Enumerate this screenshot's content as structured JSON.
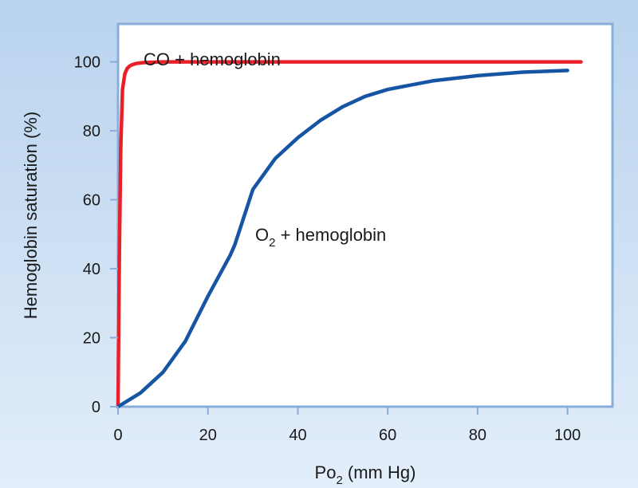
{
  "chart_data": {
    "type": "line",
    "title": "",
    "xlabel": {
      "main": "Po",
      "sub": "2",
      "rest": " (mm Hg)"
    },
    "ylabel": "Hemoglobin saturation (%)",
    "xlim": [
      0,
      110
    ],
    "ylim": [
      0,
      111
    ],
    "xticks": [
      "0",
      "20",
      "40",
      "60",
      "80",
      "100"
    ],
    "xtick_values": [
      0,
      20,
      40,
      60,
      80,
      100
    ],
    "yticks": [
      "0",
      "20",
      "40",
      "60",
      "80",
      "100"
    ],
    "ytick_values": [
      0,
      20,
      40,
      60,
      80,
      100
    ],
    "grid": false,
    "series": [
      {
        "name": "CO + hemoglobin",
        "color": "#e8202a",
        "x": [
          0,
          0.3,
          0.6,
          1,
          1.5,
          2,
          2.5,
          3,
          4,
          5,
          6,
          8,
          10,
          20,
          40,
          60,
          80,
          100,
          103
        ],
        "y": [
          0,
          45,
          75,
          92,
          96.5,
          98,
          98.7,
          99.1,
          99.5,
          99.7,
          99.8,
          99.9,
          100,
          100,
          100,
          100,
          100,
          100,
          100
        ]
      },
      {
        "name": "O2 + hemoglobin",
        "color": "#1555a3",
        "x": [
          0,
          5,
          10,
          15,
          20,
          25,
          26,
          30,
          35,
          40,
          45,
          50,
          55,
          60,
          70,
          80,
          90,
          100
        ],
        "y": [
          0,
          4,
          10,
          19,
          32,
          44,
          47,
          63,
          72,
          78,
          83,
          87,
          90,
          92,
          94.5,
          96,
          97,
          97.5
        ]
      }
    ],
    "annotations": [
      {
        "id": "co",
        "text": "CO + hemoglobin"
      },
      {
        "id": "o2",
        "main": "O",
        "sub": "2",
        "rest": " + hemoglobin"
      }
    ]
  }
}
